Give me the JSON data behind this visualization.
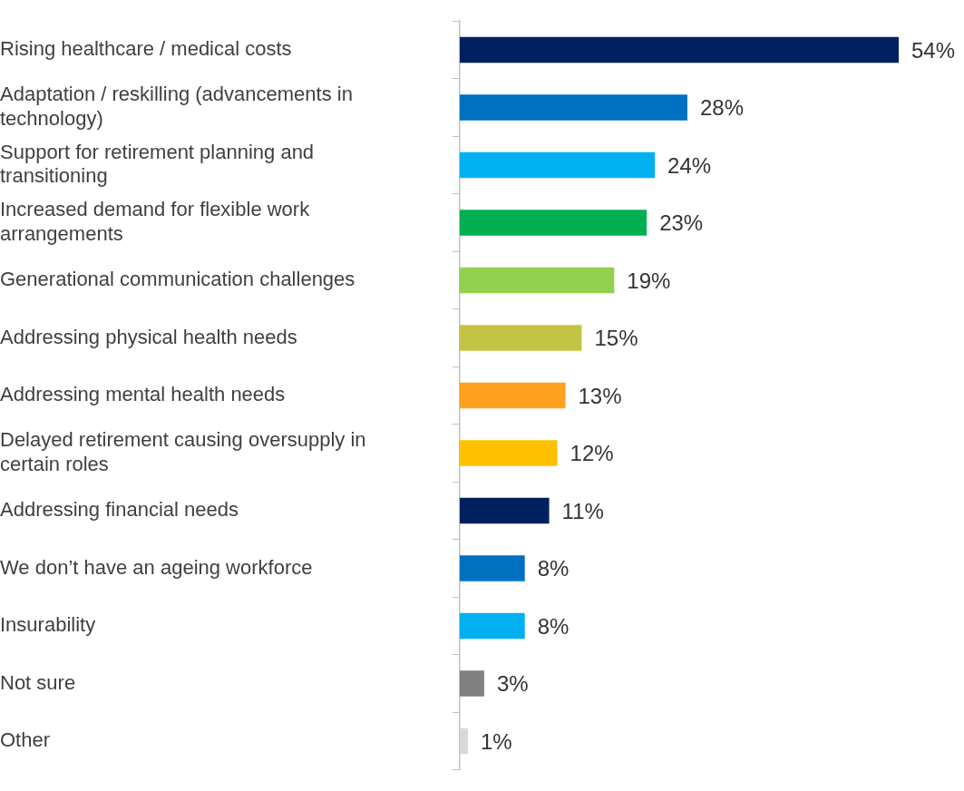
{
  "chart_data": {
    "type": "bar",
    "orientation": "horizontal",
    "tick_labels": "y",
    "legend": false,
    "categories": [
      "Rising healthcare / medical costs",
      "Adaptation / reskilling (advancements in technology)",
      "Support for retirement planning and transitioning",
      "Increased demand for flexible work arrangements",
      "Generational communication challenges",
      "Addressing physical health needs",
      "Addressing mental health needs",
      "Delayed retirement causing oversupply in certain roles",
      "Addressing financial needs",
      "We don’t have an ageing workforce",
      "Insurability",
      "Not sure",
      "Other"
    ],
    "values": [
      54,
      28,
      24,
      23,
      19,
      15,
      13,
      12,
      11,
      8,
      8,
      3,
      1
    ],
    "value_labels": [
      "54%",
      "28%",
      "24%",
      "23%",
      "19%",
      "15%",
      "13%",
      "12%",
      "11%",
      "8%",
      "8%",
      "3%",
      "1%"
    ],
    "colors": [
      "#002060",
      "#0070c0",
      "#00b0f0",
      "#00b050",
      "#92d050",
      "#c4c444",
      "#ffa020",
      "#ffc000",
      "#002060",
      "#0070c0",
      "#00b0f0",
      "#808080",
      "#d9d9d9"
    ]
  }
}
